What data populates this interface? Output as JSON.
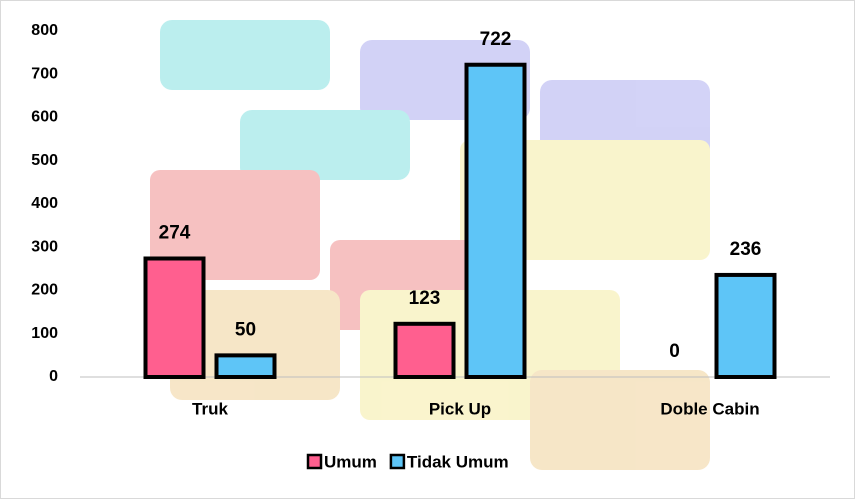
{
  "chart_data": {
    "type": "bar",
    "categories": [
      "Truk",
      "Pick Up",
      "Doble Cabin"
    ],
    "series": [
      {
        "name": "Umum",
        "color": "#ff5f8f",
        "values": [
          274,
          123,
          0
        ]
      },
      {
        "name": "Tidak Umum",
        "color": "#5ec5f7",
        "values": [
          50,
          722,
          236
        ]
      }
    ],
    "ylim": [
      0,
      800
    ],
    "yticks": [
      0,
      100,
      200,
      300,
      400,
      500,
      600,
      700,
      800
    ],
    "legend": "bottom"
  }
}
